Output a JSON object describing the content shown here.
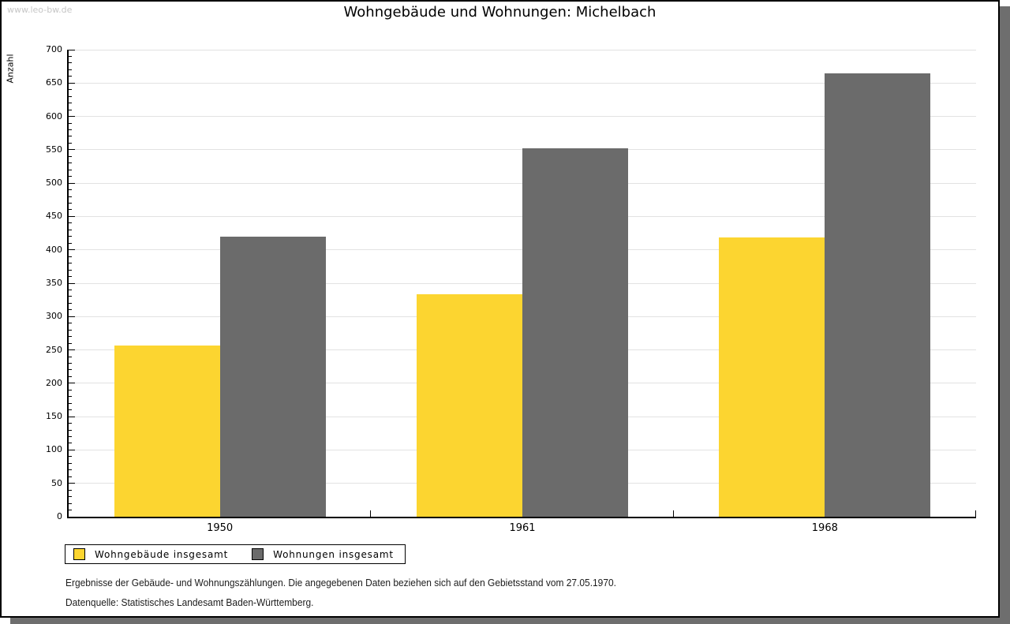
{
  "page": {
    "watermark": "www.leo-bw.de"
  },
  "chart_data": {
    "type": "bar",
    "title": "Wohngebäude und Wohnungen: Michelbach",
    "categories": [
      "1950",
      "1961",
      "1968"
    ],
    "series": [
      {
        "name": "Wohngebäude insgesamt",
        "slug": "wohngebaeude",
        "color": "#fcd530",
        "values": [
          257,
          334,
          419
        ]
      },
      {
        "name": "Wohnungen insgesamt",
        "slug": "wohnungen",
        "color": "#6b6b6b",
        "values": [
          420,
          552,
          664
        ]
      }
    ],
    "xlabel": "",
    "ylabel": "Anzahl",
    "ylim": [
      0,
      700
    ],
    "ytick_step": 50,
    "minor_tick_step": 10,
    "grid": true,
    "legend_position": "bottom-left"
  },
  "footnotes": [
    "Ergebnisse der Gebäude- und Wohnungszählungen. Die angegebenen Daten beziehen sich auf den Gebietsstand vom 27.05.1970.",
    "Datenquelle: Statistisches Landesamt Baden-Württemberg."
  ],
  "colors": {
    "background": "#ffffff",
    "axis": "#000000",
    "grid": "#e2e2e2",
    "watermark": "#c6c6c6",
    "shadow": "#6e6e6e",
    "bar_yellow": "#fcd530",
    "bar_gray": "#6b6b6b"
  }
}
